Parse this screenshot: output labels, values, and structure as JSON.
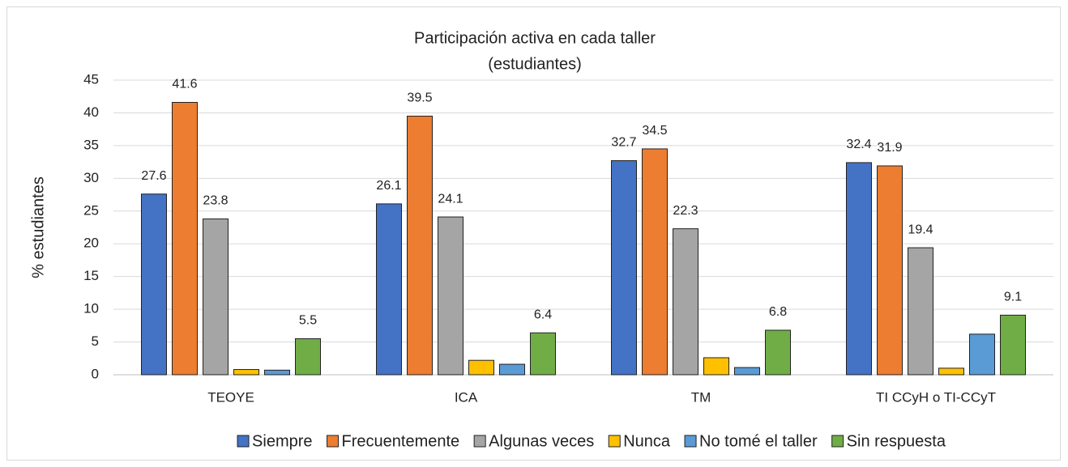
{
  "chart_data": {
    "type": "bar",
    "title": "Participación activa en cada taller",
    "subtitle": "(estudiantes)",
    "y_label": "% estudiantes",
    "categories": [
      "TEOYE",
      "ICA",
      "TM",
      "TI CCyH o TI-CCyT"
    ],
    "series": [
      {
        "name": "Siempre",
        "color": "#4472c4",
        "data_labels": true,
        "values": [
          27.6,
          26.1,
          32.7,
          32.4
        ]
      },
      {
        "name": "Frecuentemente",
        "color": "#ed7d31",
        "data_labels": true,
        "values": [
          41.6,
          39.5,
          34.5,
          31.9
        ]
      },
      {
        "name": "Algunas veces",
        "color": "#a5a5a5",
        "data_labels": true,
        "values": [
          23.8,
          24.1,
          22.3,
          19.4
        ]
      },
      {
        "name": "Nunca",
        "color": "#ffc000",
        "data_labels": false,
        "values": [
          0.8,
          2.2,
          2.6,
          1.0
        ]
      },
      {
        "name": "No tomé el taller",
        "color": "#5b9bd5",
        "data_labels": false,
        "values": [
          0.7,
          1.6,
          1.1,
          6.2
        ]
      },
      {
        "name": "Sin respuesta",
        "color": "#70ad47",
        "data_labels": true,
        "values": [
          5.5,
          6.4,
          6.8,
          9.1
        ]
      }
    ],
    "ylim": [
      0,
      45
    ],
    "yticks": [
      0,
      5,
      10,
      15,
      20,
      25,
      30,
      35,
      40,
      45
    ],
    "grid": true,
    "legend": "bottom"
  }
}
